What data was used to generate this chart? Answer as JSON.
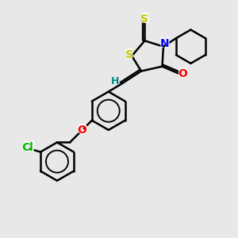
{
  "background_color": "#e8e8e8",
  "atom_colors": {
    "S": "#c8c800",
    "N": "#0000ff",
    "O": "#ff0000",
    "Cl": "#00bb00",
    "C": "#000000",
    "H": "#008888"
  },
  "bond_color": "#000000",
  "bond_width": 1.8,
  "font_size_atoms": 10,
  "figsize": [
    3.0,
    3.0
  ],
  "dpi": 100
}
